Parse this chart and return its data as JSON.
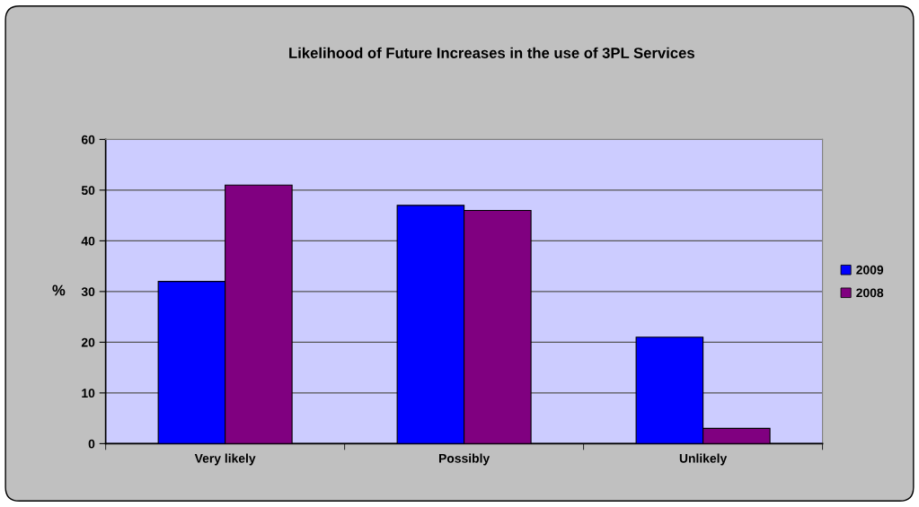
{
  "chart_data": {
    "type": "bar",
    "title": "Likelihood of Future Increases in the use of 3PL Services",
    "ylabel": "%",
    "categories": [
      "Very likely",
      "Possibly",
      "Unlikely"
    ],
    "series": [
      {
        "name": "2009",
        "color": "#0000ff",
        "values": [
          32,
          47,
          21
        ]
      },
      {
        "name": "2008",
        "color": "#800080",
        "values": [
          51,
          46,
          3
        ]
      }
    ],
    "ylim": [
      0,
      60
    ],
    "yticks": [
      0,
      10,
      20,
      30,
      40,
      50,
      60
    ],
    "grid": "y",
    "legend": "right"
  }
}
